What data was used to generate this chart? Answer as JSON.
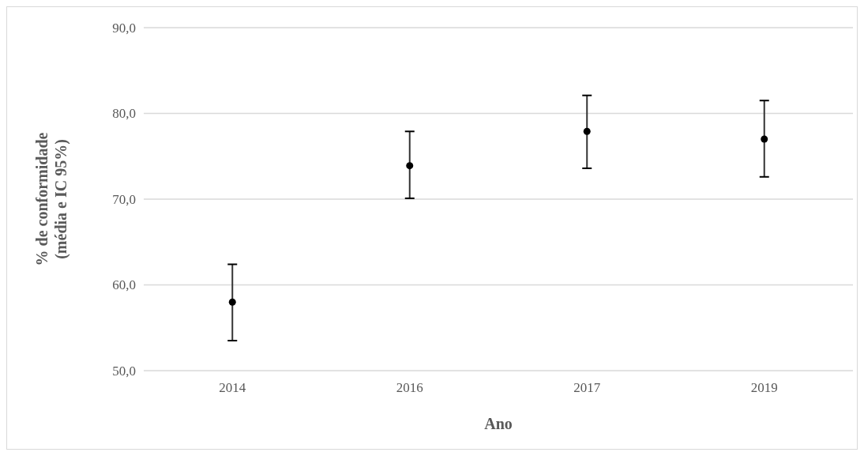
{
  "chart_data": {
    "type": "scatter",
    "xlabel": "Ano",
    "ylabel": "% de conformidade\n(média e IC 95%)",
    "categories": [
      "2014",
      "2016",
      "2017",
      "2019"
    ],
    "values": [
      58.0,
      73.9,
      77.9,
      77.0
    ],
    "errors": [
      [
        53.5,
        62.4
      ],
      [
        70.1,
        77.9
      ],
      [
        73.6,
        82.1
      ],
      [
        72.6,
        81.5
      ]
    ],
    "color": "#000000",
    "marker": "circle",
    "grid": "y",
    "ylim": [
      50,
      90
    ],
    "yticks": [
      {
        "value": 50,
        "label": "50,0"
      },
      {
        "value": 60,
        "label": "60,0"
      },
      {
        "value": 70,
        "label": "70,0"
      },
      {
        "value": 80,
        "label": "80,0"
      },
      {
        "value": 90,
        "label": "90,0"
      }
    ]
  }
}
